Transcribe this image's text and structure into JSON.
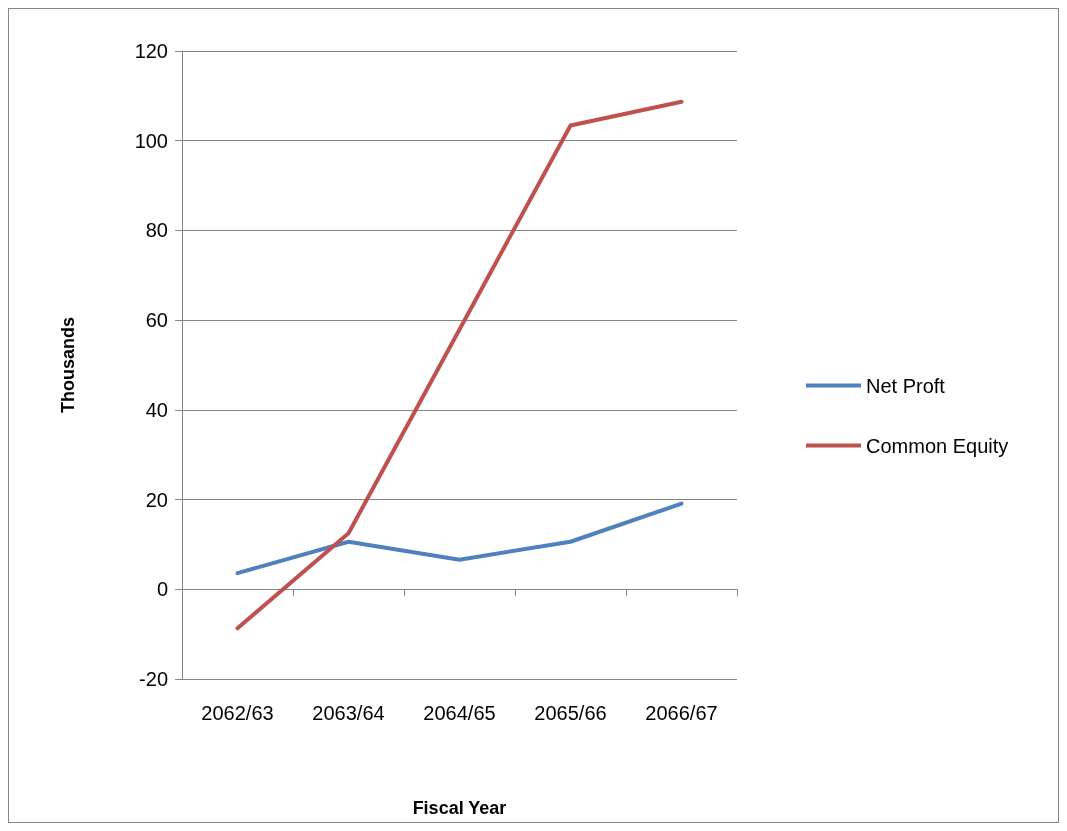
{
  "chart_data": {
    "type": "line",
    "xlabel": "Fiscal Year",
    "ylabel": "Thousands",
    "categories": [
      "2062/63",
      "2063/64",
      "2064/65",
      "2065/66",
      "2066/67"
    ],
    "series": [
      {
        "name": "Net Proft",
        "color": "#4f81bd",
        "values": [
          3.6,
          10.6,
          6.6,
          10.6,
          19.1
        ]
      },
      {
        "name": "Common Equity",
        "color": "#c0504d",
        "values": [
          -8.7,
          12.5,
          57.9,
          103.4,
          108.7
        ]
      }
    ],
    "ylim": [
      -20,
      120
    ],
    "yticks": [
      -20,
      0,
      20,
      40,
      60,
      80,
      100,
      120
    ],
    "grid": "y",
    "legend": "right",
    "marker": "none",
    "line_style": "solid"
  }
}
